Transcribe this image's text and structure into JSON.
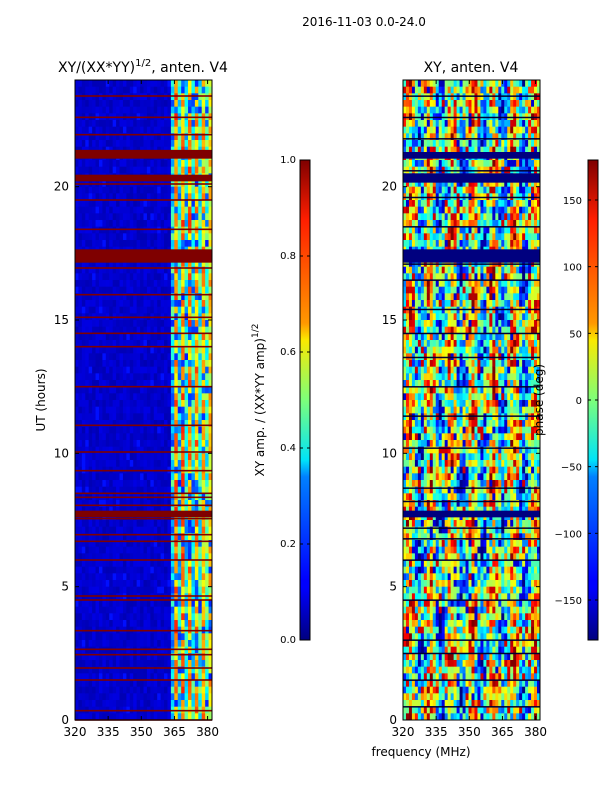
{
  "figure": {
    "suptitle": "2016-11-03 0.0-24.0",
    "shared_xlabel": "frequency (MHz)"
  },
  "chart_data": [
    {
      "type": "heatmap",
      "title_main": "XY/(XX*YY)",
      "title_exp": "1/2",
      "title_tail": ", anten. V4",
      "xlabel": "",
      "ylabel": "UT (hours)",
      "xlim": [
        320,
        382
      ],
      "ylim": [
        0,
        24
      ],
      "xticks": [
        320,
        335,
        350,
        365,
        380
      ],
      "yticks": [
        0,
        5,
        10,
        15,
        20
      ],
      "colormap": "jet",
      "colorbar": {
        "label_main": "XY amp. / (XX*YY amp)",
        "label_exp": "1/2",
        "range": [
          0.0,
          1.0
        ],
        "ticks": [
          "0.0",
          "0.2",
          "0.4",
          "0.6",
          "0.8",
          "1.0"
        ],
        "tick_values": [
          0.0,
          0.2,
          0.4,
          0.6,
          0.8,
          1.0
        ]
      },
      "flagged_rows_hours": [
        0.0,
        0.35,
        1.5,
        1.95,
        2.45,
        2.65,
        3.35,
        4.5,
        4.65,
        6.0,
        6.7,
        6.95,
        7.55,
        7.75,
        8.05,
        8.35,
        8.5,
        9.35,
        10.05,
        11.05,
        12.5,
        14.0,
        14.5,
        15.1,
        15.95,
        16.95,
        17.2,
        17.5,
        18.4,
        19.5,
        20.1,
        20.35,
        21.35,
        21.95,
        22.6,
        23.4
      ],
      "flagged_bands_hours": [
        [
          17.15,
          17.65
        ],
        [
          21.05,
          21.35
        ],
        [
          20.2,
          20.45
        ],
        [
          7.6,
          7.85
        ]
      ],
      "active_columns_mhz": [
        365,
        367.5,
        369.5,
        372,
        375,
        377,
        379
      ]
    },
    {
      "type": "heatmap",
      "title_main": "XY, anten. V4",
      "xlabel": "frequency (MHz)",
      "ylabel": "",
      "xlim": [
        320,
        382
      ],
      "ylim": [
        0,
        24
      ],
      "xticks": [
        320,
        335,
        350,
        365,
        380
      ],
      "yticks": [
        0,
        5,
        10,
        15,
        20
      ],
      "colormap": "jet",
      "colorbar": {
        "label_main": "phase (deg)",
        "range": [
          -180,
          180
        ],
        "ticks": [
          "−150",
          "−100",
          "−50",
          "0",
          "50",
          "100",
          "150"
        ],
        "tick_values": [
          -150,
          -100,
          -50,
          0,
          50,
          100,
          150
        ]
      },
      "blank_rows_hours": [
        0.5,
        1.5,
        2.5,
        3.0,
        4.5,
        6.0,
        6.8,
        7.2,
        7.8,
        8.2,
        8.7,
        10.2,
        11.4,
        12.5,
        13.6,
        14.5,
        15.4,
        16.5,
        17.1,
        18.5,
        19.6,
        20.6,
        21.8,
        22.6,
        23.4
      ],
      "flagged_bands_hours": [
        [
          17.15,
          17.65
        ],
        [
          20.15,
          20.5
        ],
        [
          21.05,
          21.3
        ],
        [
          7.6,
          7.85
        ]
      ]
    }
  ]
}
